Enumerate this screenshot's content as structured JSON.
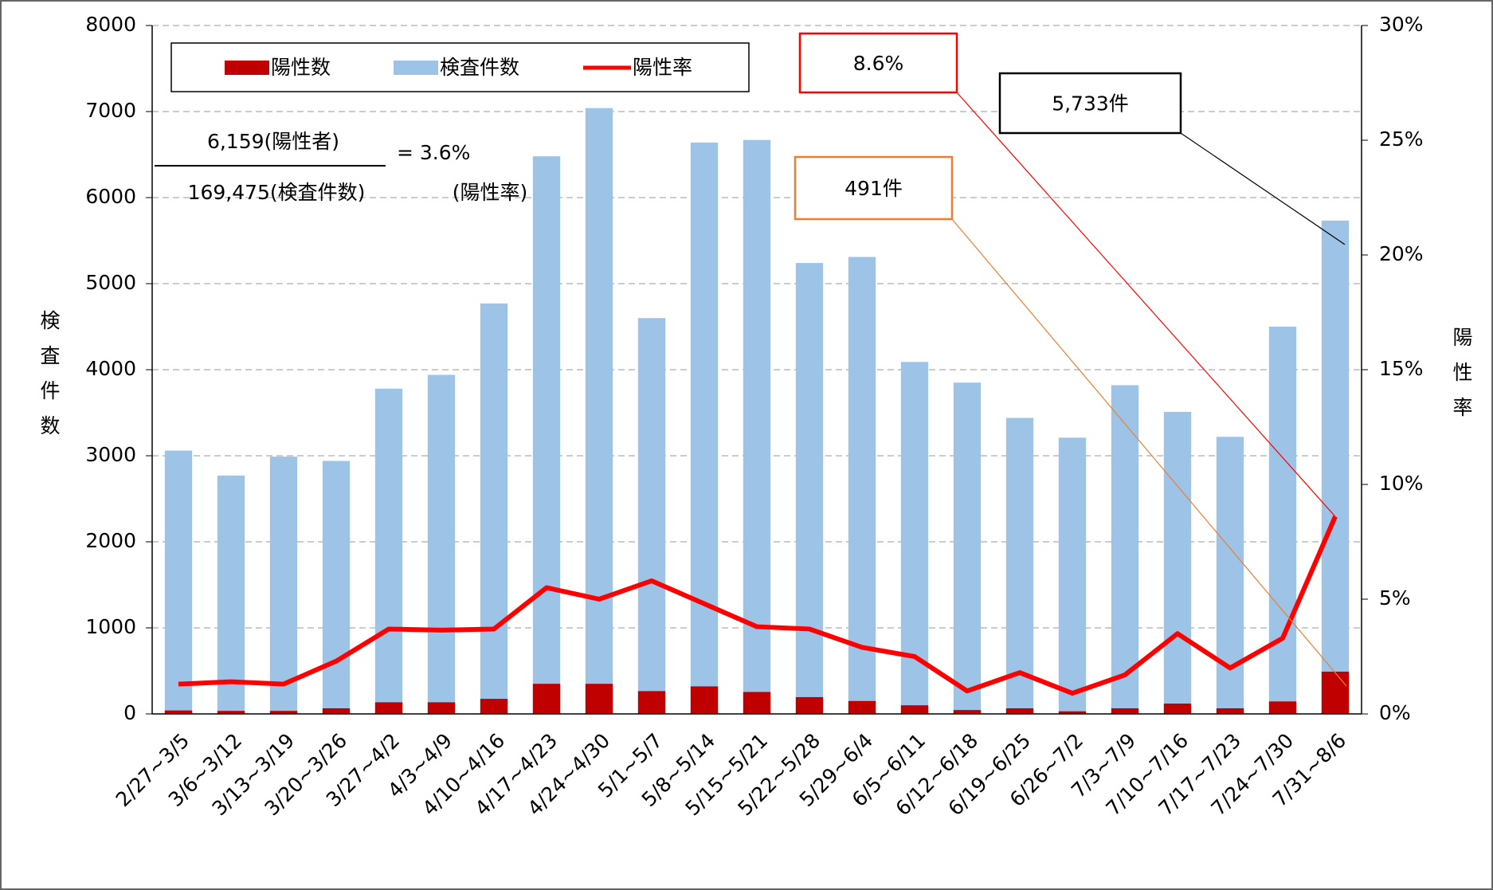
{
  "chart_data": {
    "type": "bar_line",
    "categories": [
      "2/27~3/5",
      "3/6~3/12",
      "3/13~3/19",
      "3/20~3/26",
      "3/27~4/2",
      "4/3~4/9",
      "4/10~4/16",
      "4/17~4/23",
      "4/24~4/30",
      "5/1~5/7",
      "5/8~5/14",
      "5/15~5/21",
      "5/22~5/28",
      "5/29~6/4",
      "6/5~6/11",
      "6/12~6/18",
      "6/19~6/25",
      "6/26~7/2",
      "7/3~7/9",
      "7/10~7/16",
      "7/17~7/23",
      "7/24~7/30",
      "7/31~8/6"
    ],
    "series": [
      {
        "name": "陽性数",
        "color": "#c00000",
        "type": "bar",
        "values": [
          40,
          35,
          35,
          65,
          135,
          135,
          175,
          350,
          350,
          265,
          320,
          255,
          195,
          150,
          100,
          45,
          65,
          30,
          65,
          120,
          65,
          145,
          491
        ]
      },
      {
        "name": "検査件数",
        "color": "#9dc3e6",
        "type": "bar",
        "values": [
          3060,
          2770,
          2990,
          2940,
          3780,
          3940,
          4770,
          6480,
          7040,
          4600,
          6640,
          6670,
          5240,
          5310,
          4090,
          3850,
          3440,
          3210,
          3820,
          3510,
          3220,
          4500,
          5733
        ]
      },
      {
        "name": "陽性率",
        "color": "#ff0000",
        "type": "line",
        "axis": "y2",
        "values": [
          1.3,
          1.4,
          1.3,
          2.3,
          3.7,
          3.65,
          3.7,
          5.5,
          5.0,
          5.8,
          4.8,
          3.8,
          3.7,
          2.9,
          2.5,
          1.0,
          1.8,
          0.9,
          1.7,
          3.5,
          2.0,
          3.3,
          8.6
        ]
      }
    ],
    "ylabel": "検査件数",
    "y2label": "陽性率",
    "ylim": [
      0,
      8000
    ],
    "yticks": [
      0,
      1000,
      2000,
      3000,
      4000,
      5000,
      6000,
      7000,
      8000
    ],
    "y2lim": [
      0,
      30
    ],
    "y2ticks": [
      {
        "value": 0,
        "label": "0%"
      },
      {
        "value": 5,
        "label": "5%"
      },
      {
        "value": 10,
        "label": "10%"
      },
      {
        "value": 15,
        "label": "15%"
      },
      {
        "value": 20,
        "label": "20%"
      },
      {
        "value": 25,
        "label": "25%"
      },
      {
        "value": 30,
        "label": "30%"
      }
    ],
    "grid": true,
    "annotations": {
      "rate_label": "8.6%",
      "tests_label": "5,733件",
      "positive_label": "491件",
      "formula_numerator": "6,159(陽性者)",
      "formula_denominator": "169,475(検査件数)",
      "formula_result": "= 3.6%",
      "formula_result_label": "(陽性率)"
    }
  }
}
